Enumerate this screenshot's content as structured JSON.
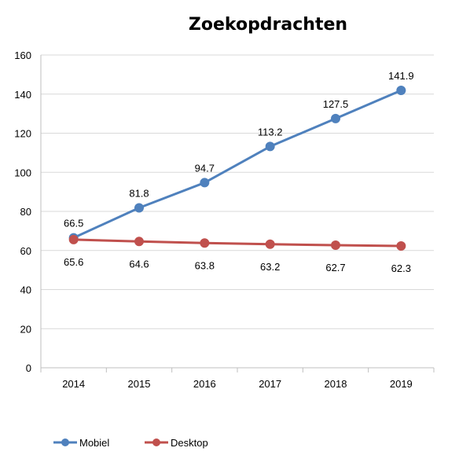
{
  "chart_data": {
    "type": "line",
    "title": "Zoekopdrachten",
    "xlabel": "",
    "ylabel": "",
    "categories": [
      "2014",
      "2015",
      "2016",
      "2017",
      "2018",
      "2019"
    ],
    "ylim": [
      0,
      160
    ],
    "yticks": [
      0,
      20,
      40,
      60,
      80,
      100,
      120,
      140,
      160
    ],
    "grid": true,
    "legend": "bottom-left",
    "series": [
      {
        "name": "Mobiel",
        "color": "#4f81bd",
        "values": [
          66.5,
          81.8,
          94.7,
          113.2,
          127.5,
          141.9
        ],
        "labels": [
          "66.5",
          "81.8",
          "94.7",
          "113.2",
          "127.5",
          "141.9"
        ],
        "label_position": "above"
      },
      {
        "name": "Desktop",
        "color": "#c0504d",
        "values": [
          65.6,
          64.6,
          63.8,
          63.2,
          62.7,
          62.3
        ],
        "labels": [
          "65.6",
          "64.6",
          "63.8",
          "63.2",
          "62.7",
          "62.3"
        ],
        "label_position": "below"
      }
    ]
  }
}
